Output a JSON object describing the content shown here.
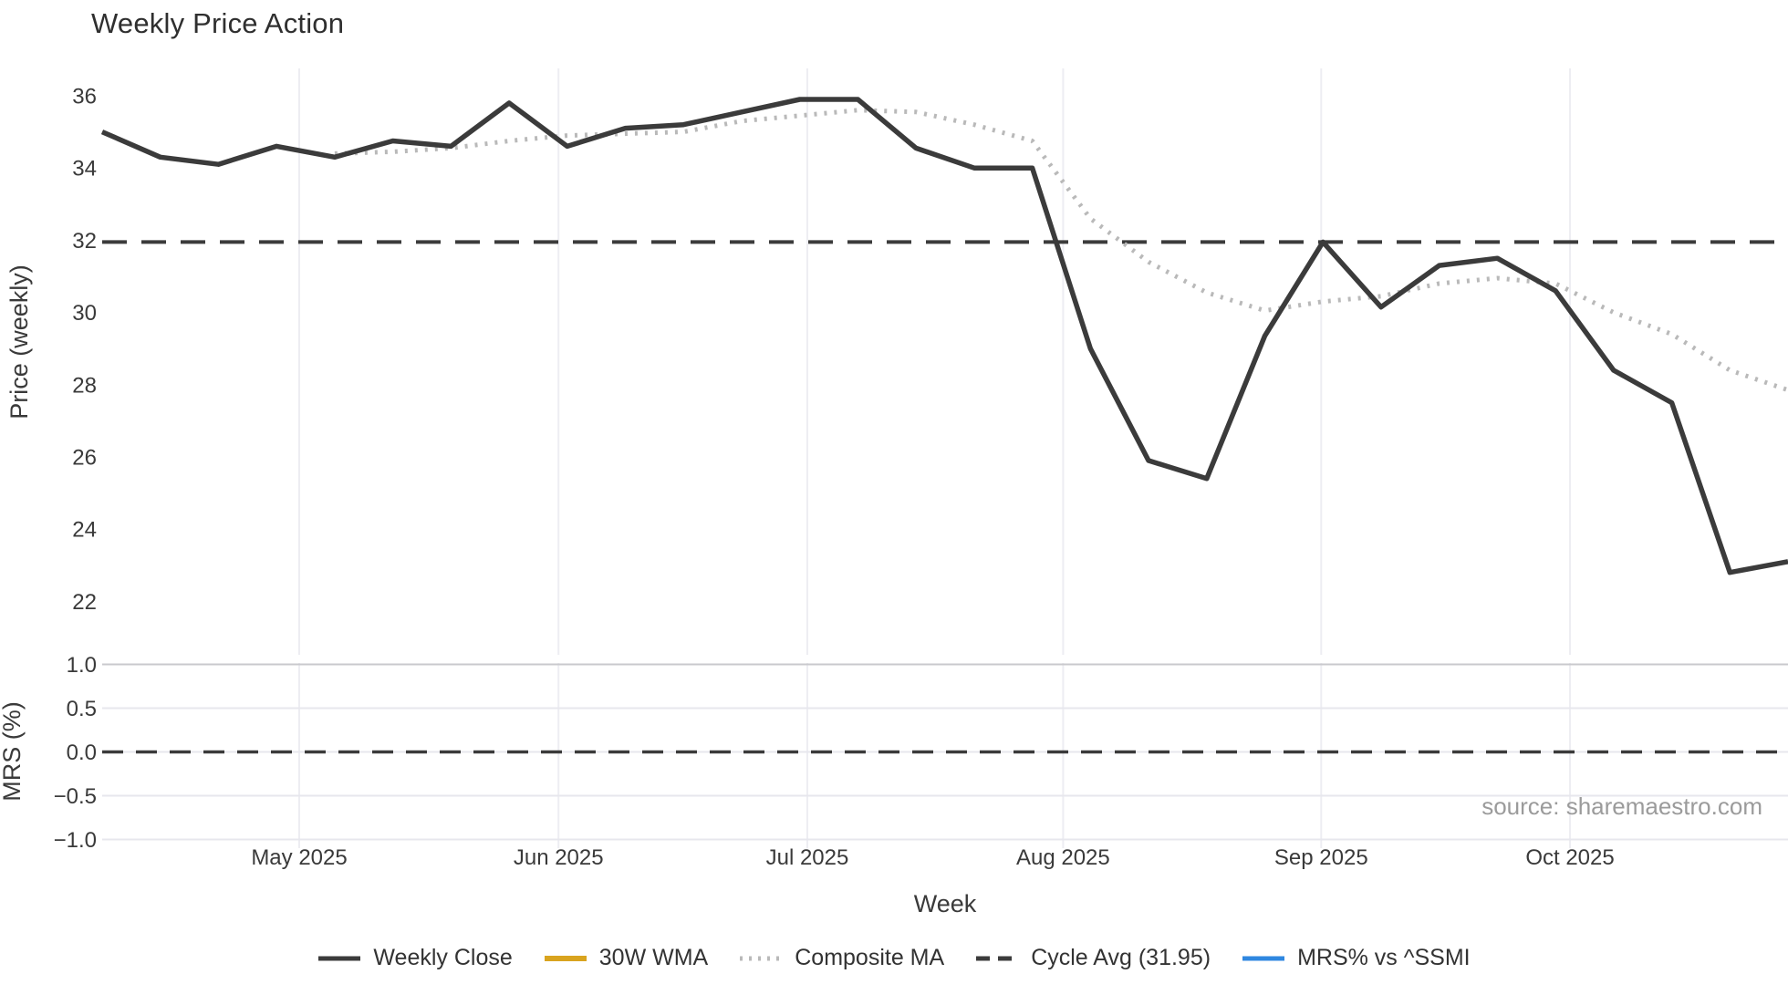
{
  "title": "Weekly Price Action",
  "source": "source: sharemaestro.com",
  "axis": {
    "price_ylabel": "Price (weekly)",
    "mrs_ylabel": "MRS (%)",
    "xlabel": "Week"
  },
  "colors": {
    "dark_line": "#3b3b3b",
    "gold_line": "#d9a41f",
    "dotted_line": "#b9b9b9",
    "blue_line": "#2f87e0",
    "grid": "#ededf2",
    "grid_strong": "#c9c9cd",
    "tick_text": "#3a3a3a",
    "muted_text": "#9b9b9b"
  },
  "legend": {
    "items": [
      {
        "label": "Weekly Close",
        "style": "solid",
        "color": "#3b3b3b"
      },
      {
        "label": "30W WMA",
        "style": "solid",
        "color": "#d9a41f"
      },
      {
        "label": "Composite MA",
        "style": "dotted",
        "color": "#b9b9b9"
      },
      {
        "label": "Cycle Avg (31.95)",
        "style": "dashed",
        "color": "#3b3b3b"
      },
      {
        "label": "MRS% vs ^SSMI",
        "style": "solid",
        "color": "#2f87e0"
      }
    ]
  },
  "chart_data": [
    {
      "type": "line",
      "panel": "price",
      "title": "Weekly Price Action",
      "xlabel": "Week",
      "ylabel": "Price (weekly)",
      "x_unit": "weekly points, Apr-Oct 2025",
      "n_points": 30,
      "ylim": [
        20.5,
        36.8
      ],
      "grid": "vertical",
      "yticks": [
        {
          "v": 22,
          "label": "22"
        },
        {
          "v": 24,
          "label": "24"
        },
        {
          "v": 26,
          "label": "26"
        },
        {
          "v": 28,
          "label": "28"
        },
        {
          "v": 30,
          "label": "30"
        },
        {
          "v": 32,
          "label": "32"
        },
        {
          "v": 34,
          "label": "34"
        },
        {
          "v": 36,
          "label": "36"
        }
      ],
      "xticks": [
        {
          "pos": 3.39,
          "label": "May 2025"
        },
        {
          "pos": 7.85,
          "label": "Jun 2025"
        },
        {
          "pos": 12.13,
          "label": "Jul 2025"
        },
        {
          "pos": 16.53,
          "label": "Aug 2025"
        },
        {
          "pos": 20.97,
          "label": "Sep 2025"
        },
        {
          "pos": 25.25,
          "label": "Oct 2025"
        }
      ],
      "series": [
        {
          "name": "Weekly Close",
          "style": "solid",
          "color": "#3b3b3b",
          "width": 5.5,
          "values": [
            35.0,
            34.3,
            34.1,
            34.6,
            34.3,
            34.75,
            34.6,
            35.8,
            34.6,
            35.1,
            35.2,
            35.55,
            35.9,
            35.9,
            34.55,
            34.0,
            34.0,
            29.0,
            25.9,
            25.4,
            29.35,
            31.95,
            30.15,
            31.3,
            31.5,
            30.6,
            28.4,
            27.5,
            22.8,
            23.1
          ]
        },
        {
          "name": "30W WMA",
          "style": "solid",
          "color": "#d9a41f",
          "width": 5,
          "values": []
        },
        {
          "name": "Composite MA",
          "style": "dotted",
          "color": "#b9b9b9",
          "width": 5,
          "values": [
            null,
            null,
            null,
            null,
            34.4,
            34.45,
            34.55,
            34.75,
            34.9,
            34.95,
            35.0,
            35.3,
            35.45,
            35.6,
            35.55,
            35.2,
            34.75,
            32.6,
            31.4,
            30.55,
            30.05,
            30.3,
            30.45,
            30.8,
            30.95,
            30.8,
            30.0,
            29.4,
            28.4,
            27.85
          ]
        },
        {
          "name": "Cycle Avg (31.95)",
          "style": "dashed",
          "color": "#3b3b3b",
          "width": 4,
          "const_value": 31.95
        }
      ]
    },
    {
      "type": "line",
      "panel": "mrs",
      "ylabel": "MRS (%)",
      "ylim": [
        -1.19,
        1.07
      ],
      "yticks": [
        {
          "v": 1.0,
          "label": "1.0"
        },
        {
          "v": 0.5,
          "label": "0.5"
        },
        {
          "v": 0.0,
          "label": "0.0"
        },
        {
          "v": -0.5,
          "label": "−0.5"
        },
        {
          "v": -1.0,
          "label": "−1.0"
        }
      ],
      "zero_line": {
        "style": "dashed",
        "color": "#3b3b3b",
        "value": 0.0
      },
      "series": [
        {
          "name": "MRS% vs ^SSMI",
          "style": "solid",
          "color": "#2f87e0",
          "width": 4,
          "values": []
        }
      ]
    }
  ]
}
